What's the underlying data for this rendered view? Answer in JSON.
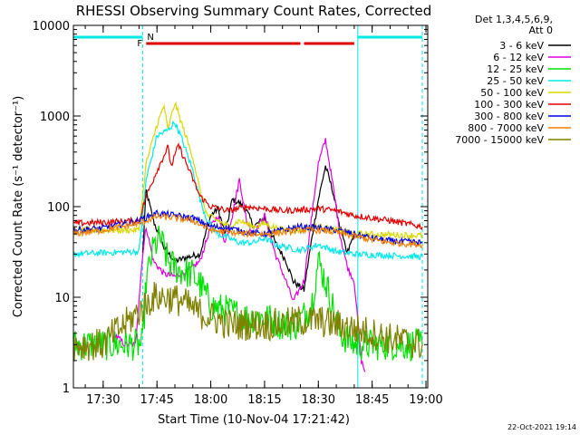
{
  "chart_data": {
    "type": "line",
    "title": "RHESSI Observing Summary Count Rates, Corrected",
    "xlabel": "Start Time (10-Nov-04 17:21:42)",
    "ylabel": "Corrected Count Rate (s⁻¹ detector⁻¹)",
    "y_scale": "log",
    "ylim": [
      1,
      10000
    ],
    "xlim": [
      "17:21:42",
      "19:00:30"
    ],
    "x_ticks": [
      "17:30",
      "17:45",
      "18:00",
      "18:15",
      "18:30",
      "18:45",
      "19:00"
    ],
    "y_ticks": [
      "1",
      "10",
      "100",
      "1000",
      "10000"
    ],
    "legend_header": [
      "Det 1,3,4,5,6,9,",
      "Att 0"
    ],
    "legend_position": "right",
    "footer_date": "22-Oct-2021 19:14",
    "flags": [
      {
        "label": "N",
        "color": "#00e8e8",
        "segments": [
          [
            "17:21:42",
            "17:41:00"
          ],
          [
            "18:41:00",
            "18:59:00"
          ]
        ]
      },
      {
        "label": "F",
        "color": "#e00000",
        "segments": [
          [
            "17:42:00",
            "18:25:00"
          ],
          [
            "18:26:00",
            "18:40:00"
          ]
        ]
      }
    ],
    "vlines": [
      {
        "x": "17:41:00",
        "style": "dashed",
        "color": "#00e8e8"
      },
      {
        "x": "18:41:00",
        "style": "solid",
        "color": "#00e8e8"
      },
      {
        "x": "18:59:00",
        "style": "dashed",
        "color": "#00e8e8"
      }
    ],
    "series": [
      {
        "name": "3 - 6 keV",
        "color": "#000000",
        "points": [
          [
            "17:41:00",
            30
          ],
          [
            "17:42:00",
            150
          ],
          [
            "17:44:00",
            70
          ],
          [
            "17:47:00",
            35
          ],
          [
            "17:50:00",
            25
          ],
          [
            "17:54:00",
            28
          ],
          [
            "17:57:00",
            30
          ],
          [
            "18:00:00",
            80
          ],
          [
            "18:02:00",
            95
          ],
          [
            "18:04:00",
            50
          ],
          [
            "18:06:00",
            120
          ],
          [
            "18:08:00",
            110
          ],
          [
            "18:10:00",
            90
          ],
          [
            "18:12:00",
            60
          ],
          [
            "18:15:00",
            75
          ],
          [
            "18:18:00",
            40
          ],
          [
            "18:21:00",
            25
          ],
          [
            "18:23:00",
            15
          ],
          [
            "18:26:00",
            12
          ],
          [
            "18:28:00",
            40
          ],
          [
            "18:30:00",
            120
          ],
          [
            "18:32:00",
            280
          ],
          [
            "18:34:00",
            150
          ],
          [
            "18:36:00",
            60
          ],
          [
            "18:38:00",
            30
          ],
          [
            "18:40:00",
            50
          ]
        ]
      },
      {
        "name": "6 - 12 keV",
        "color": "#e000e0",
        "points": [
          [
            "17:33:00",
            4
          ],
          [
            "17:36:00",
            3
          ],
          [
            "17:39:00",
            3
          ],
          [
            "17:41:00",
            30
          ],
          [
            "17:42:00",
            60
          ],
          [
            "17:44:00",
            25
          ],
          [
            "17:47:00",
            18
          ],
          [
            "17:50:00",
            17
          ],
          [
            "17:54:00",
            20
          ],
          [
            "17:57:00",
            25
          ],
          [
            "18:00:00",
            60
          ],
          [
            "18:02:00",
            80
          ],
          [
            "18:04:00",
            40
          ],
          [
            "18:06:00",
            80
          ],
          [
            "18:08:00",
            200
          ],
          [
            "18:10:00",
            70
          ],
          [
            "18:12:00",
            50
          ],
          [
            "18:15:00",
            80
          ],
          [
            "18:18:00",
            30
          ],
          [
            "18:21:00",
            15
          ],
          [
            "18:23:00",
            9
          ],
          [
            "18:26:00",
            15
          ],
          [
            "18:28:00",
            70
          ],
          [
            "18:30:00",
            300
          ],
          [
            "18:32:00",
            550
          ],
          [
            "18:34:00",
            180
          ],
          [
            "18:36:00",
            50
          ],
          [
            "18:38:00",
            22
          ],
          [
            "18:40:00",
            15
          ],
          [
            "18:42:00",
            2
          ],
          [
            "18:43:00",
            1.5
          ]
        ]
      },
      {
        "name": "12 - 25 keV",
        "color": "#00e000",
        "points": [
          [
            "17:21:42",
            3
          ],
          [
            "17:41:00",
            3
          ],
          [
            "17:42:00",
            15
          ],
          [
            "17:44:00",
            35
          ],
          [
            "17:46:00",
            45
          ],
          [
            "17:48:00",
            25
          ],
          [
            "17:51:00",
            20
          ],
          [
            "17:55:00",
            18
          ],
          [
            "17:58:00",
            12
          ],
          [
            "18:00:00",
            8
          ],
          [
            "18:05:00",
            7
          ],
          [
            "18:10:00",
            6
          ],
          [
            "18:15:00",
            6
          ],
          [
            "18:20:00",
            5
          ],
          [
            "18:24:00",
            5
          ],
          [
            "18:28:00",
            8
          ],
          [
            "18:30:00",
            25
          ],
          [
            "18:32:00",
            15
          ],
          [
            "18:34:00",
            8
          ],
          [
            "18:36:00",
            4
          ],
          [
            "18:40:00",
            3
          ],
          [
            "18:59:00",
            3
          ]
        ]
      },
      {
        "name": "25 - 50 keV",
        "color": "#00e8e8",
        "points": [
          [
            "17:21:42",
            30
          ],
          [
            "17:40:00",
            32
          ],
          [
            "17:42:00",
            200
          ],
          [
            "17:45:00",
            600
          ],
          [
            "17:48:00",
            700
          ],
          [
            "17:50:00",
            850
          ],
          [
            "17:52:00",
            550
          ],
          [
            "17:55:00",
            250
          ],
          [
            "17:57:00",
            120
          ],
          [
            "17:59:00",
            70
          ],
          [
            "18:02:00",
            50
          ],
          [
            "18:05:00",
            45
          ],
          [
            "18:08:00",
            40
          ],
          [
            "18:12:00",
            40
          ],
          [
            "18:15:00",
            45
          ],
          [
            "18:18:00",
            38
          ],
          [
            "18:22:00",
            35
          ],
          [
            "18:25:00",
            33
          ],
          [
            "18:30:00",
            38
          ],
          [
            "18:35:00",
            32
          ],
          [
            "18:40:00",
            30
          ],
          [
            "18:59:00",
            28
          ]
        ]
      },
      {
        "name": "50 - 100 keV",
        "color": "#d8d800",
        "points": [
          [
            "17:21:42",
            55
          ],
          [
            "17:40:00",
            55
          ],
          [
            "17:42:00",
            300
          ],
          [
            "17:45:00",
            800
          ],
          [
            "17:47:00",
            1300
          ],
          [
            "17:48:00",
            700
          ],
          [
            "17:50:00",
            1400
          ],
          [
            "17:52:00",
            800
          ],
          [
            "17:55:00",
            350
          ],
          [
            "17:57:00",
            150
          ],
          [
            "17:59:00",
            80
          ],
          [
            "18:02:00",
            70
          ],
          [
            "18:05:00",
            60
          ],
          [
            "18:08:00",
            70
          ],
          [
            "18:12:00",
            60
          ],
          [
            "18:15:00",
            65
          ],
          [
            "18:20:00",
            55
          ],
          [
            "18:25:00",
            55
          ],
          [
            "18:30:00",
            60
          ],
          [
            "18:35:00",
            55
          ],
          [
            "18:40:00",
            50
          ],
          [
            "18:59:00",
            48
          ]
        ]
      },
      {
        "name": "100 - 300 keV",
        "color": "#e00000",
        "points": [
          [
            "17:21:42",
            65
          ],
          [
            "17:40:00",
            70
          ],
          [
            "17:42:00",
            130
          ],
          [
            "17:45:00",
            250
          ],
          [
            "17:48:00",
            450
          ],
          [
            "17:49:00",
            280
          ],
          [
            "17:51:00",
            480
          ],
          [
            "17:54:00",
            250
          ],
          [
            "17:57:00",
            130
          ],
          [
            "18:00:00",
            100
          ],
          [
            "18:05:00",
            90
          ],
          [
            "18:10:00",
            100
          ],
          [
            "18:15:00",
            95
          ],
          [
            "18:20:00",
            90
          ],
          [
            "18:25:00",
            92
          ],
          [
            "18:30:00",
            95
          ],
          [
            "18:35:00",
            90
          ],
          [
            "18:40:00",
            80
          ],
          [
            "18:50:00",
            70
          ],
          [
            "18:59:00",
            60
          ]
        ]
      },
      {
        "name": "300 - 800 keV",
        "color": "#0000e0",
        "points": [
          [
            "17:21:42",
            55
          ],
          [
            "17:30:00",
            58
          ],
          [
            "17:40:00",
            70
          ],
          [
            "17:45:00",
            85
          ],
          [
            "17:50:00",
            80
          ],
          [
            "17:55:00",
            75
          ],
          [
            "18:00:00",
            60
          ],
          [
            "18:05:00",
            58
          ],
          [
            "18:10:00",
            52
          ],
          [
            "18:15:00",
            50
          ],
          [
            "18:20:00",
            55
          ],
          [
            "18:25:00",
            60
          ],
          [
            "18:30:00",
            58
          ],
          [
            "18:35:00",
            55
          ],
          [
            "18:40:00",
            50
          ],
          [
            "18:45:00",
            45
          ],
          [
            "18:50:00",
            42
          ],
          [
            "18:59:00",
            40
          ]
        ]
      },
      {
        "name": "800 - 7000 keV",
        "color": "#f08000",
        "points": [
          [
            "17:21:42",
            50
          ],
          [
            "17:30:00",
            55
          ],
          [
            "17:40:00",
            65
          ],
          [
            "17:45:00",
            78
          ],
          [
            "17:50:00",
            75
          ],
          [
            "17:55:00",
            70
          ],
          [
            "18:00:00",
            55
          ],
          [
            "18:05:00",
            52
          ],
          [
            "18:10:00",
            50
          ],
          [
            "18:15:00",
            50
          ],
          [
            "18:20:00",
            52
          ],
          [
            "18:25:00",
            55
          ],
          [
            "18:30:00",
            55
          ],
          [
            "18:35:00",
            52
          ],
          [
            "18:40:00",
            47
          ],
          [
            "18:45:00",
            43
          ],
          [
            "18:50:00",
            40
          ],
          [
            "18:59:00",
            38
          ]
        ]
      },
      {
        "name": "7000 - 15000 keV",
        "color": "#808000",
        "points": [
          [
            "17:21:42",
            3
          ],
          [
            "17:30:00",
            3
          ],
          [
            "17:33:00",
            4
          ],
          [
            "17:36:00",
            5
          ],
          [
            "17:40:00",
            7
          ],
          [
            "17:44:00",
            10
          ],
          [
            "17:48:00",
            10
          ],
          [
            "17:52:00",
            9
          ],
          [
            "17:56:00",
            7
          ],
          [
            "18:00:00",
            6
          ],
          [
            "18:05:00",
            5
          ],
          [
            "18:10:00",
            5
          ],
          [
            "18:15:00",
            5
          ],
          [
            "18:20:00",
            5
          ],
          [
            "18:25:00",
            5.5
          ],
          [
            "18:30:00",
            5.5
          ],
          [
            "18:35:00",
            5
          ],
          [
            "18:40:00",
            4.5
          ],
          [
            "18:45:00",
            4
          ],
          [
            "18:50:00",
            3.5
          ],
          [
            "18:59:00",
            3
          ]
        ]
      }
    ]
  }
}
